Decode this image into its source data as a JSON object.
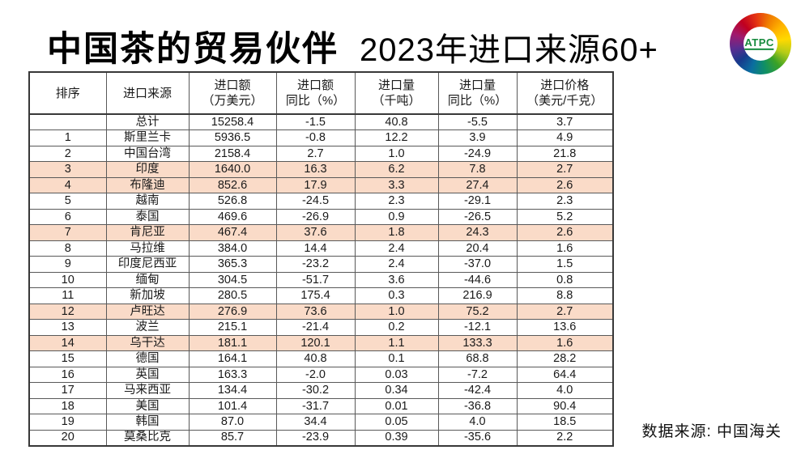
{
  "title": {
    "main": "中国茶的贸易伙伴",
    "sub": "2023年进口来源60+"
  },
  "logo": {
    "text": "ATPC"
  },
  "table": {
    "headers": [
      {
        "line1": "排序",
        "line2": ""
      },
      {
        "line1": "进口来源",
        "line2": ""
      },
      {
        "line1": "进口额",
        "line2": "（万美元）"
      },
      {
        "line1": "进口额",
        "line2": "同比（%）"
      },
      {
        "line1": "进口量",
        "line2": "（千吨）"
      },
      {
        "line1": "进口量",
        "line2": "同比（%）"
      },
      {
        "line1": "进口价格",
        "line2": "（美元/千克）"
      }
    ],
    "rows": [
      {
        "rank": "",
        "source": "总计",
        "value": "15258.4",
        "value_yoy": "-1.5",
        "volume": "40.8",
        "volume_yoy": "-5.5",
        "price": "3.7",
        "highlight": false
      },
      {
        "rank": "1",
        "source": "斯里兰卡",
        "value": "5936.5",
        "value_yoy": "-0.8",
        "volume": "12.2",
        "volume_yoy": "3.9",
        "price": "4.9",
        "highlight": false
      },
      {
        "rank": "2",
        "source": "中国台湾",
        "value": "2158.4",
        "value_yoy": "2.7",
        "volume": "1.0",
        "volume_yoy": "-24.9",
        "price": "21.8",
        "highlight": false
      },
      {
        "rank": "3",
        "source": "印度",
        "value": "1640.0",
        "value_yoy": "16.3",
        "volume": "6.2",
        "volume_yoy": "7.8",
        "price": "2.7",
        "highlight": true
      },
      {
        "rank": "4",
        "source": "布隆迪",
        "value": "852.6",
        "value_yoy": "17.9",
        "volume": "3.3",
        "volume_yoy": "27.4",
        "price": "2.6",
        "highlight": true
      },
      {
        "rank": "5",
        "source": "越南",
        "value": "526.8",
        "value_yoy": "-24.5",
        "volume": "2.3",
        "volume_yoy": "-29.1",
        "price": "2.3",
        "highlight": false
      },
      {
        "rank": "6",
        "source": "泰国",
        "value": "469.6",
        "value_yoy": "-26.9",
        "volume": "0.9",
        "volume_yoy": "-26.5",
        "price": "5.2",
        "highlight": false
      },
      {
        "rank": "7",
        "source": "肯尼亚",
        "value": "467.4",
        "value_yoy": "37.6",
        "volume": "1.8",
        "volume_yoy": "24.3",
        "price": "2.6",
        "highlight": true
      },
      {
        "rank": "8",
        "source": "马拉维",
        "value": "384.0",
        "value_yoy": "14.4",
        "volume": "2.4",
        "volume_yoy": "20.4",
        "price": "1.6",
        "highlight": false
      },
      {
        "rank": "9",
        "source": "印度尼西亚",
        "value": "365.3",
        "value_yoy": "-23.2",
        "volume": "2.4",
        "volume_yoy": "-37.0",
        "price": "1.5",
        "highlight": false
      },
      {
        "rank": "10",
        "source": "缅甸",
        "value": "304.5",
        "value_yoy": "-51.7",
        "volume": "3.6",
        "volume_yoy": "-44.6",
        "price": "0.8",
        "highlight": false
      },
      {
        "rank": "11",
        "source": "新加坡",
        "value": "280.5",
        "value_yoy": "175.4",
        "volume": "0.3",
        "volume_yoy": "216.9",
        "price": "8.8",
        "highlight": false
      },
      {
        "rank": "12",
        "source": "卢旺达",
        "value": "276.9",
        "value_yoy": "73.6",
        "volume": "1.0",
        "volume_yoy": "75.2",
        "price": "2.7",
        "highlight": true
      },
      {
        "rank": "13",
        "source": "波兰",
        "value": "215.1",
        "value_yoy": "-21.4",
        "volume": "0.2",
        "volume_yoy": "-12.1",
        "price": "13.6",
        "highlight": false
      },
      {
        "rank": "14",
        "source": "乌干达",
        "value": "181.1",
        "value_yoy": "120.1",
        "volume": "1.1",
        "volume_yoy": "133.3",
        "price": "1.6",
        "highlight": true
      },
      {
        "rank": "15",
        "source": "德国",
        "value": "164.1",
        "value_yoy": "40.8",
        "volume": "0.1",
        "volume_yoy": "68.8",
        "price": "28.2",
        "highlight": false
      },
      {
        "rank": "16",
        "source": "英国",
        "value": "163.3",
        "value_yoy": "-2.0",
        "volume": "0.03",
        "volume_yoy": "-7.2",
        "price": "64.4",
        "highlight": false
      },
      {
        "rank": "17",
        "source": "马来西亚",
        "value": "134.4",
        "value_yoy": "-30.2",
        "volume": "0.34",
        "volume_yoy": "-42.4",
        "price": "4.0",
        "highlight": false
      },
      {
        "rank": "18",
        "source": "美国",
        "value": "101.4",
        "value_yoy": "-31.7",
        "volume": "0.01",
        "volume_yoy": "-36.8",
        "price": "90.4",
        "highlight": false
      },
      {
        "rank": "19",
        "source": "韩国",
        "value": "87.0",
        "value_yoy": "34.4",
        "volume": "0.05",
        "volume_yoy": "4.0",
        "price": "18.5",
        "highlight": false
      },
      {
        "rank": "20",
        "source": "莫桑比克",
        "value": "85.7",
        "value_yoy": "-23.9",
        "volume": "0.39",
        "volume_yoy": "-35.6",
        "price": "2.2",
        "highlight": false
      }
    ]
  },
  "footer": {
    "source_note": "数据来源: 中国海关"
  },
  "colors": {
    "row_highlight": "#fadbc8",
    "table_border": "#595959",
    "logo_text_green": "#168a3d"
  },
  "chart_data": {
    "type": "table",
    "title": "中国茶的贸易伙伴 2023年进口来源60+",
    "columns": [
      "排序",
      "进口来源",
      "进口额（万美元）",
      "进口额同比（%）",
      "进口量（千吨）",
      "进口量同比（%）",
      "进口价格（美元/千克）"
    ],
    "rows": [
      [
        "",
        "总计",
        15258.4,
        -1.5,
        40.8,
        -5.5,
        3.7
      ],
      [
        1,
        "斯里兰卡",
        5936.5,
        -0.8,
        12.2,
        3.9,
        4.9
      ],
      [
        2,
        "中国台湾",
        2158.4,
        2.7,
        1.0,
        -24.9,
        21.8
      ],
      [
        3,
        "印度",
        1640.0,
        16.3,
        6.2,
        7.8,
        2.7
      ],
      [
        4,
        "布隆迪",
        852.6,
        17.9,
        3.3,
        27.4,
        2.6
      ],
      [
        5,
        "越南",
        526.8,
        -24.5,
        2.3,
        -29.1,
        2.3
      ],
      [
        6,
        "泰国",
        469.6,
        -26.9,
        0.9,
        -26.5,
        5.2
      ],
      [
        7,
        "肯尼亚",
        467.4,
        37.6,
        1.8,
        24.3,
        2.6
      ],
      [
        8,
        "马拉维",
        384.0,
        14.4,
        2.4,
        20.4,
        1.6
      ],
      [
        9,
        "印度尼西亚",
        365.3,
        -23.2,
        2.4,
        -37.0,
        1.5
      ],
      [
        10,
        "缅甸",
        304.5,
        -51.7,
        3.6,
        -44.6,
        0.8
      ],
      [
        11,
        "新加坡",
        280.5,
        175.4,
        0.3,
        216.9,
        8.8
      ],
      [
        12,
        "卢旺达",
        276.9,
        73.6,
        1.0,
        75.2,
        2.7
      ],
      [
        13,
        "波兰",
        215.1,
        -21.4,
        0.2,
        -12.1,
        13.6
      ],
      [
        14,
        "乌干达",
        181.1,
        120.1,
        1.1,
        133.3,
        1.6
      ],
      [
        15,
        "德国",
        164.1,
        40.8,
        0.1,
        68.8,
        28.2
      ],
      [
        16,
        "英国",
        163.3,
        -2.0,
        0.03,
        -7.2,
        64.4
      ],
      [
        17,
        "马来西亚",
        134.4,
        -30.2,
        0.34,
        -42.4,
        4.0
      ],
      [
        18,
        "美国",
        101.4,
        -31.7,
        0.01,
        -36.8,
        90.4
      ],
      [
        19,
        "韩国",
        87.0,
        34.4,
        0.05,
        4.0,
        18.5
      ],
      [
        20,
        "莫桑比克",
        85.7,
        -23.9,
        0.39,
        -35.6,
        2.2
      ]
    ],
    "highlighted_row_ranks": [
      3,
      4,
      7,
      12,
      14
    ],
    "source_note": "数据来源: 中国海关"
  }
}
